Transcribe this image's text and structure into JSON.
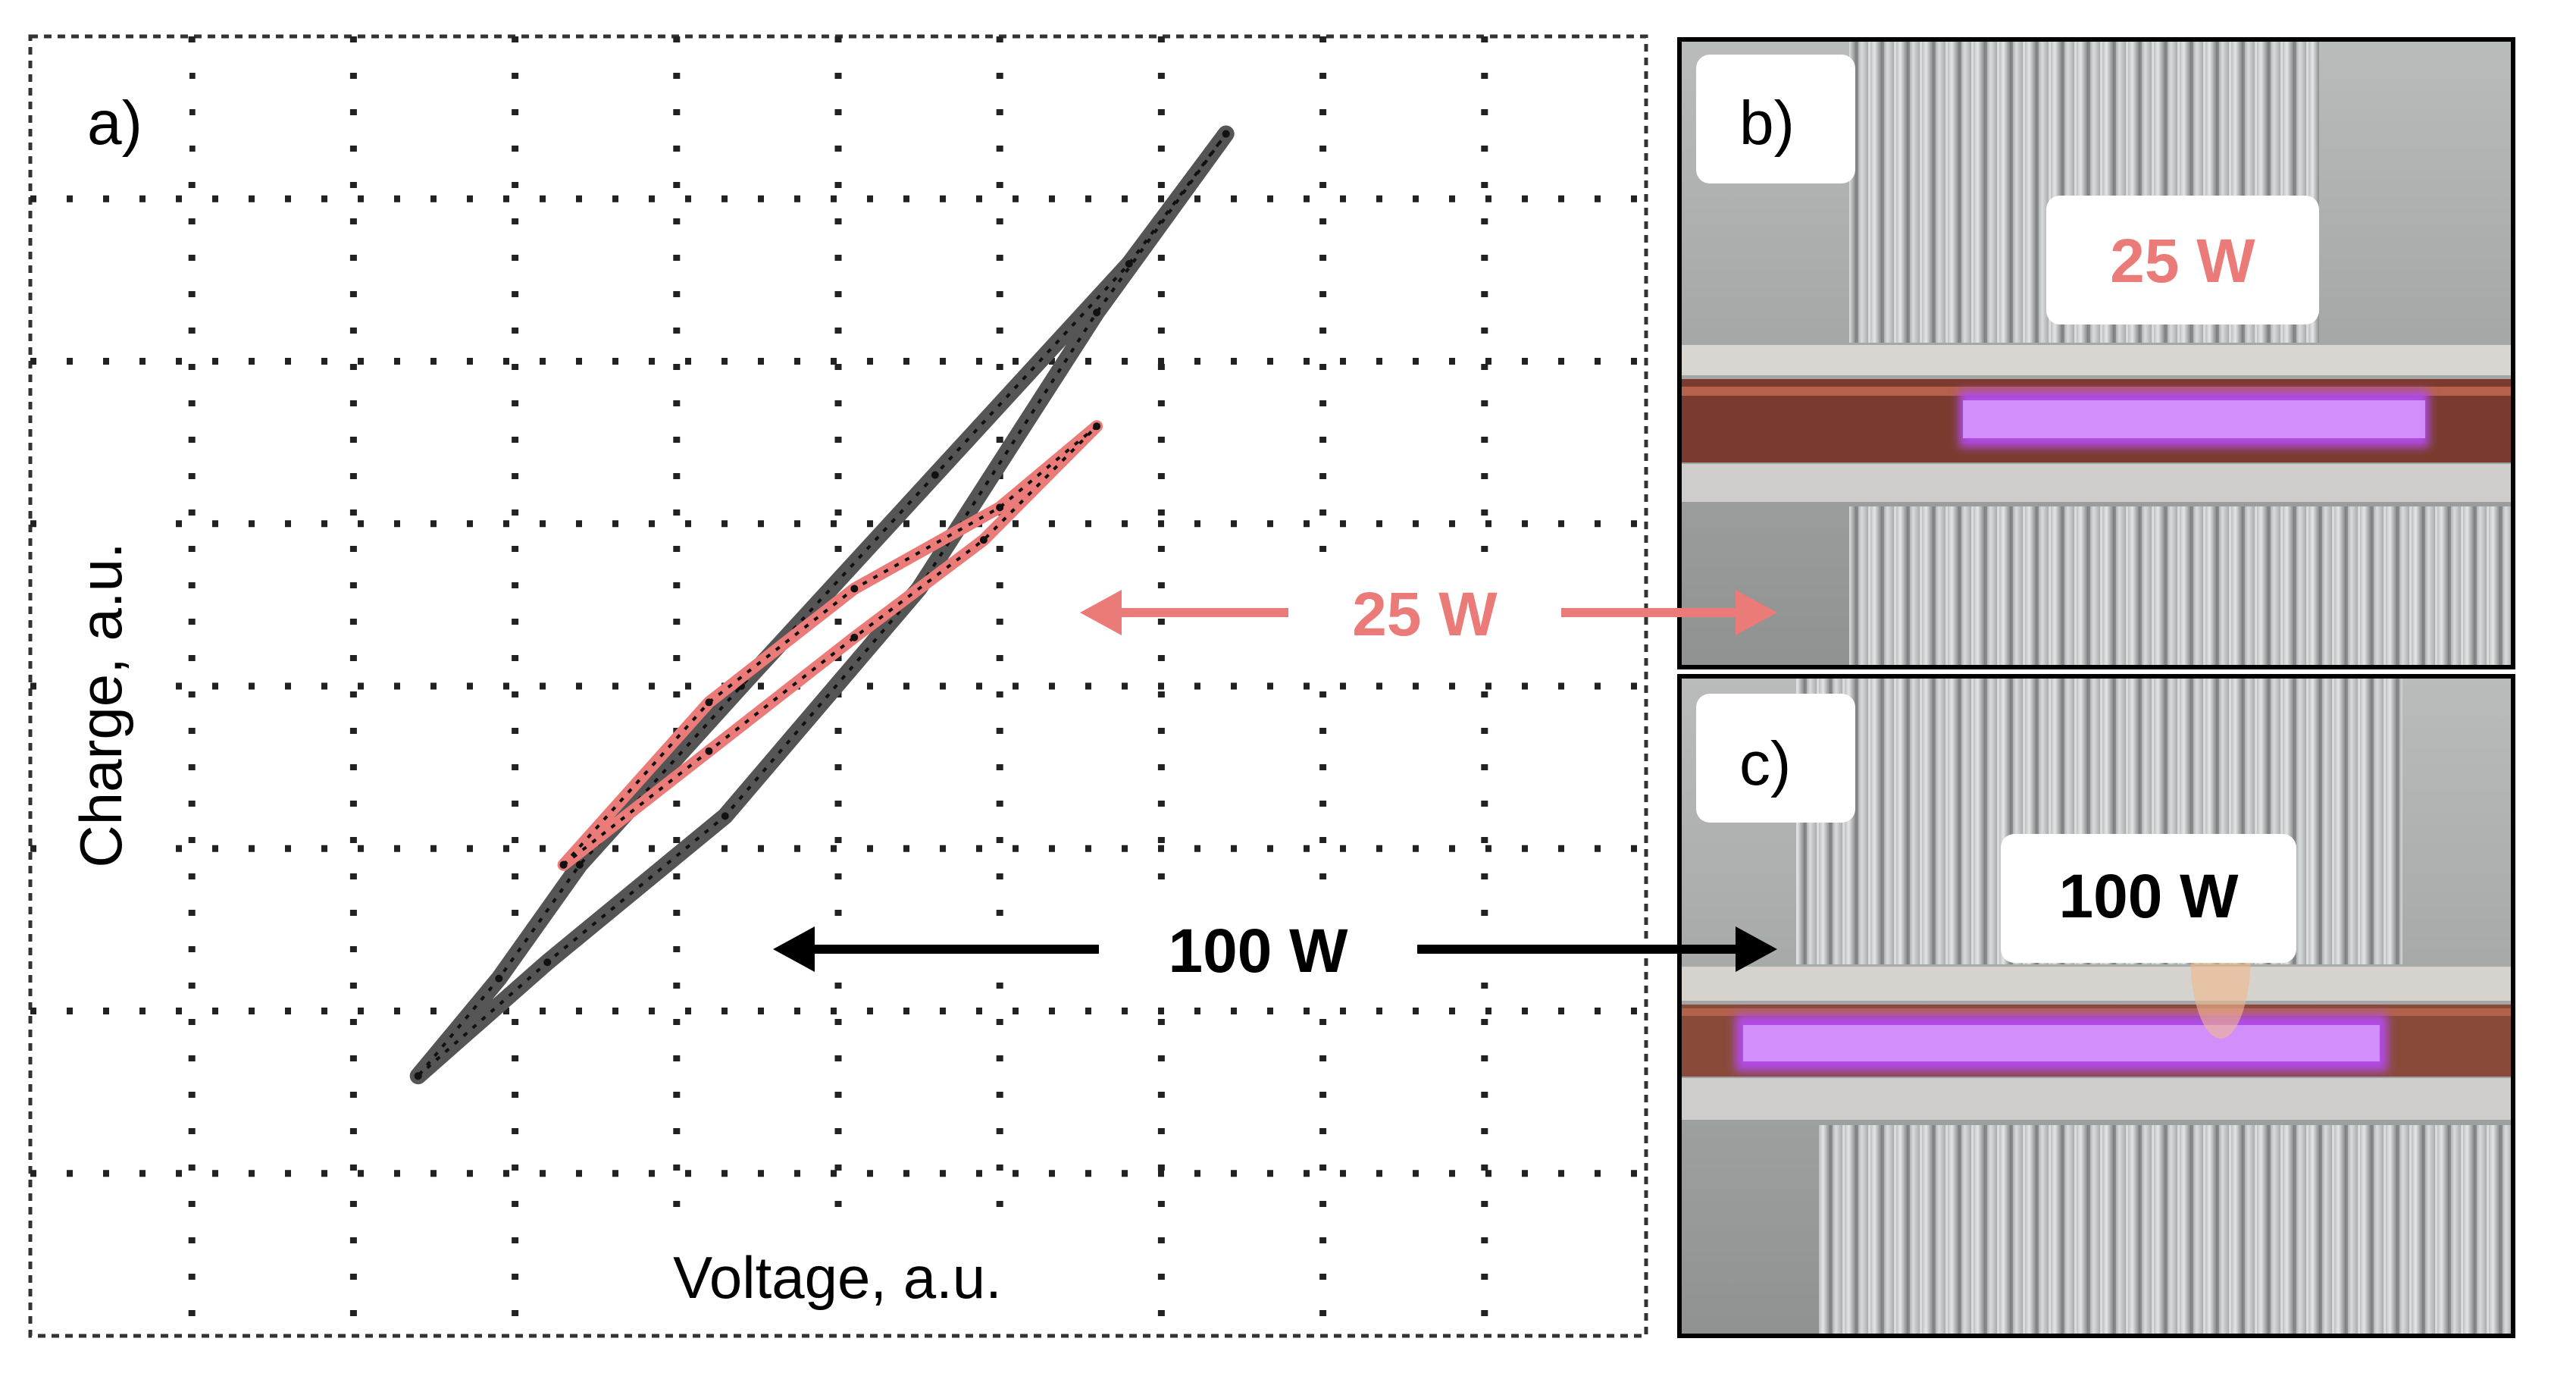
{
  "panels": {
    "a": {
      "label": "a)"
    },
    "b": {
      "label": "b)",
      "power_label": "25 W"
    },
    "c": {
      "label": "c)",
      "power_label": "100 W"
    }
  },
  "annotations": {
    "arrow_25": "25 W",
    "arrow_100": "100 W"
  },
  "colors": {
    "series_25": "#ea7b78",
    "series_100": "#555555",
    "plasma": "#b04ce8",
    "grid": "#222222"
  },
  "chart_data": {
    "type": "line",
    "title": "",
    "xlabel": "Voltage, a.u.",
    "ylabel": "Charge, a.u.",
    "xlim": [
      0,
      10
    ],
    "ylim": [
      0,
      8
    ],
    "grid": true,
    "series": [
      {
        "name": "100 W",
        "color": "#555555",
        "points": [
          [
            2.4,
            1.6
          ],
          [
            3.2,
            2.3
          ],
          [
            4.3,
            3.2
          ],
          [
            5.5,
            4.6
          ],
          [
            6.6,
            6.3
          ],
          [
            7.4,
            7.4
          ],
          [
            6.8,
            6.6
          ],
          [
            5.6,
            5.3
          ],
          [
            4.4,
            4.0
          ],
          [
            3.4,
            2.9
          ],
          [
            2.9,
            2.2
          ],
          [
            2.4,
            1.6
          ]
        ]
      },
      {
        "name": "25 W",
        "color": "#ea7b78",
        "points": [
          [
            3.3,
            2.9
          ],
          [
            4.2,
            3.6
          ],
          [
            5.1,
            4.3
          ],
          [
            5.9,
            4.9
          ],
          [
            6.6,
            5.6
          ],
          [
            6.0,
            5.1
          ],
          [
            5.1,
            4.6
          ],
          [
            4.2,
            3.9
          ],
          [
            3.3,
            2.9
          ]
        ]
      }
    ]
  }
}
